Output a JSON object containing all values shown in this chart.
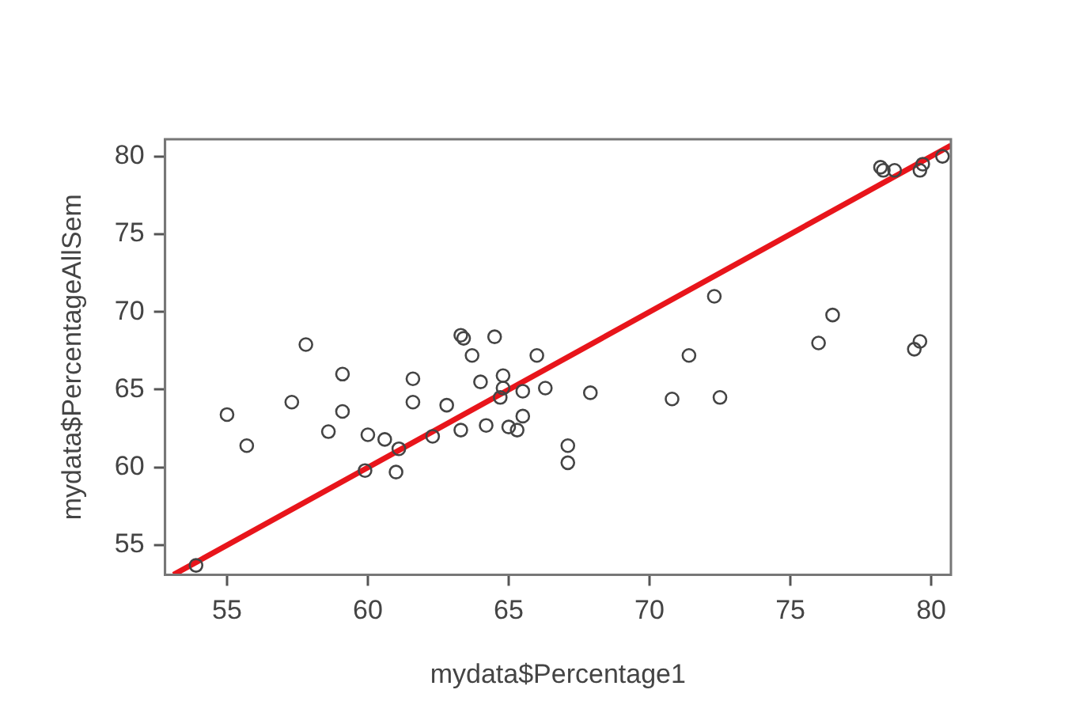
{
  "chart_data": {
    "type": "scatter",
    "xlabel": "mydata$Percentage1",
    "ylabel": "mydata$PercentageAllSem",
    "xlim": [
      52.8,
      80.7
    ],
    "ylim": [
      53.1,
      81.1
    ],
    "xticks": [
      55,
      60,
      65,
      70,
      75,
      80
    ],
    "yticks": [
      55,
      60,
      65,
      70,
      75,
      80
    ],
    "grid": false,
    "legend": false,
    "marker": "circle",
    "series": [
      {
        "color": "#444444",
        "x": [
          53.9,
          55.0,
          55.7,
          57.8,
          57.3,
          59.1,
          59.1,
          58.6,
          60.0,
          60.6,
          61.1,
          59.9,
          61.0,
          61.6,
          61.6,
          62.3,
          62.8,
          63.3,
          63.4,
          63.3,
          63.7,
          64.5,
          64.0,
          64.2,
          64.8,
          64.8,
          64.7,
          65.0,
          65.3,
          65.5,
          65.5,
          66.0,
          66.3,
          67.1,
          67.1,
          67.9,
          70.8,
          71.4,
          72.3,
          72.5,
          76.0,
          76.5,
          79.4,
          79.6,
          78.2,
          78.3,
          78.7,
          79.6,
          79.7,
          80.4
        ],
        "values": [
          53.7,
          63.4,
          61.4,
          67.9,
          64.2,
          66.0,
          63.6,
          62.3,
          62.1,
          61.8,
          61.2,
          59.8,
          59.7,
          65.7,
          64.2,
          62.0,
          64.0,
          68.5,
          68.3,
          62.4,
          67.2,
          68.4,
          65.5,
          62.7,
          65.9,
          65.1,
          64.5,
          62.6,
          62.4,
          63.3,
          64.9,
          67.2,
          65.1,
          61.4,
          60.3,
          64.8,
          64.4,
          67.2,
          71.0,
          64.5,
          68.0,
          69.8,
          67.6,
          68.1,
          79.3,
          79.1,
          79.1,
          79.1,
          79.5,
          80.0
        ]
      },
      {
        "type": "line",
        "color": "#e8151b",
        "marker": "none",
        "line_style": "solid",
        "x": [
          53.1,
          80.7
        ],
        "values": [
          53.1,
          80.7
        ]
      }
    ]
  }
}
